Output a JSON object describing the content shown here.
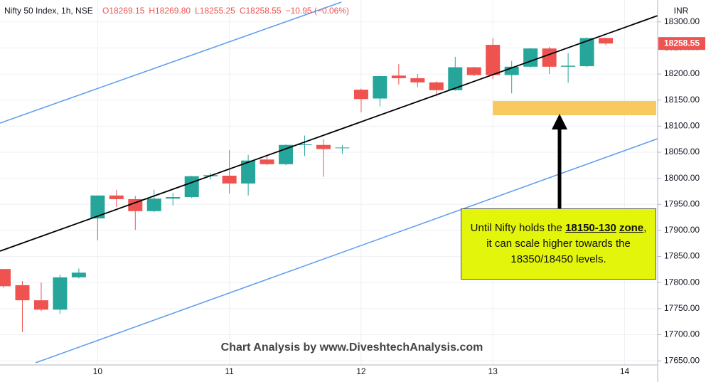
{
  "chart_data": {
    "type": "candlestick",
    "symbol": "Nifty 50 Index, 1h, NSE",
    "ohlc_text": [
      "O18269.15",
      "H18269.80",
      "L18255.25",
      "C18258.55",
      "−10.95 (−0.06%)"
    ],
    "currency": "INR",
    "watermark": "Chart Analysis by www.DiveshtechAnalysis.com",
    "annotation": {
      "parts": [
        "Until Nifty holds the ",
        "18150-130",
        " zone",
        ", it can scale higher towards the 18350/18450 levels."
      ]
    },
    "categories": [
      null,
      null,
      null,
      null,
      null,
      "10",
      null,
      null,
      null,
      null,
      null,
      null,
      "11",
      null,
      null,
      null,
      null,
      null,
      null,
      "12",
      null,
      null,
      null,
      null,
      null,
      null,
      "13",
      null,
      null,
      null,
      null,
      null,
      null,
      "14"
    ],
    "open": [
      17826,
      17795,
      17766,
      17748,
      17810,
      17923,
      17967,
      17960,
      17937,
      17961,
      17964,
      18004,
      18005,
      17990,
      18036,
      18027,
      18064,
      18064,
      18058,
      18170,
      18153,
      18197,
      18192,
      18184,
      18169,
      18213,
      18256,
      18198,
      18214,
      18249,
      18214,
      18215,
      18269.15,
      null
    ],
    "high": [
      17826,
      17803,
      17800,
      17815,
      17827,
      17967,
      17978,
      17966,
      17978,
      17972,
      18005,
      18010,
      18054,
      18045,
      18045,
      18065,
      18082,
      18075,
      18064,
      18172,
      18197,
      18219,
      18200,
      18186,
      18233,
      18214,
      18269,
      18225,
      18250,
      18252,
      18240,
      18270,
      18269.8,
      null
    ],
    "low": [
      17790,
      17705,
      17745,
      17740,
      17808,
      17881,
      17945,
      17901,
      17935,
      17948,
      17962,
      17998,
      17971,
      17967,
      18025,
      18025,
      18043,
      18003,
      18047,
      18127,
      18138,
      18180,
      18175,
      18157,
      18168,
      18196,
      18190,
      18163,
      18212,
      18200,
      18183,
      18213,
      18255.25,
      null
    ],
    "close": [
      17793,
      17766,
      17748,
      17810,
      17819,
      17967,
      17960,
      17937,
      17961,
      17964,
      18004,
      18006,
      17990,
      18034,
      18027,
      18064,
      18065,
      18056,
      18059,
      18152,
      18196,
      18192,
      18184,
      18169,
      18213,
      18198,
      18198,
      18214,
      18249,
      18214,
      18216,
      18269,
      18258.55,
      null
    ],
    "up_color": "#26a69a",
    "down_color": "#ef5350",
    "ylim": [
      17642,
      18342
    ],
    "yticks": [
      {
        "value": 17650,
        "label": "17650.00"
      },
      {
        "value": 17700,
        "label": "17700.00"
      },
      {
        "value": 17750,
        "label": "17750.00"
      },
      {
        "value": 17800,
        "label": "17800.00"
      },
      {
        "value": 17850,
        "label": "17850.00"
      },
      {
        "value": 17900,
        "label": "17900.00"
      },
      {
        "value": 17950,
        "label": "17950.00"
      },
      {
        "value": 18000,
        "label": "18000.00"
      },
      {
        "value": 18050,
        "label": "18050.00"
      },
      {
        "value": 18100,
        "label": "18100.00"
      },
      {
        "value": 18150,
        "label": "18150.00"
      },
      {
        "value": 18200,
        "label": "18200.00"
      },
      {
        "value": 18250,
        "label": "18250.00"
      },
      {
        "value": 18300,
        "label": "18300.00"
      }
    ],
    "grid": true
  }
}
